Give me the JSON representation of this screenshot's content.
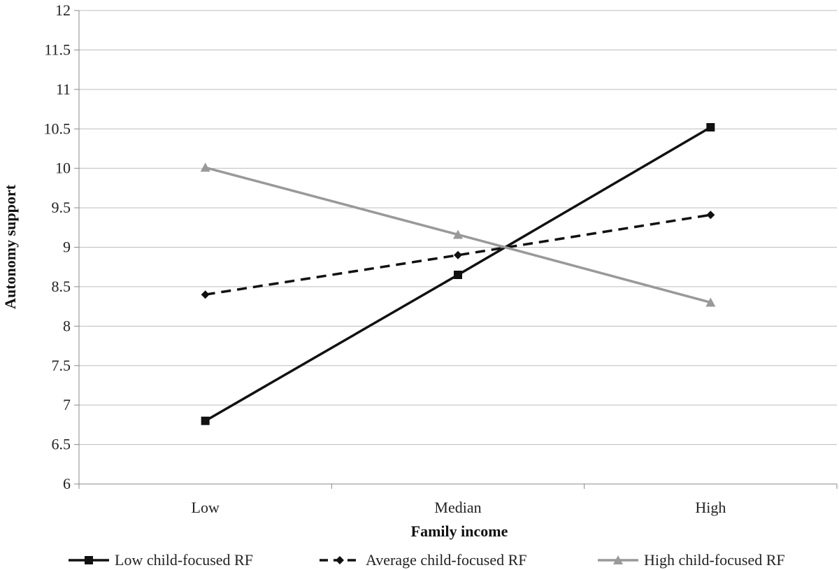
{
  "chart_data": {
    "type": "line",
    "title": "",
    "xlabel": "Family income",
    "ylabel": "Autonomy support",
    "categories": [
      "Low",
      "Median",
      "High"
    ],
    "ylim": [
      6,
      12
    ],
    "yticks": [
      "6",
      "6.5",
      "7",
      "7.5",
      "8",
      "8.5",
      "9",
      "9.5",
      "10",
      "10.5",
      "11",
      "11.5",
      "12"
    ],
    "grid": true,
    "legend_position": "bottom",
    "series": [
      {
        "name": "Low child-focused RF",
        "values": [
          6.8,
          8.65,
          10.52
        ],
        "color": "#111111",
        "dash": "solid",
        "marker": "square"
      },
      {
        "name": "Average child-focused RF",
        "values": [
          8.4,
          8.9,
          9.41
        ],
        "color": "#111111",
        "dash": "dashed",
        "marker": "diamond"
      },
      {
        "name": "High child-focused RF",
        "values": [
          10.01,
          9.16,
          8.3
        ],
        "color": "#999999",
        "dash": "solid",
        "marker": "triangle"
      }
    ]
  }
}
